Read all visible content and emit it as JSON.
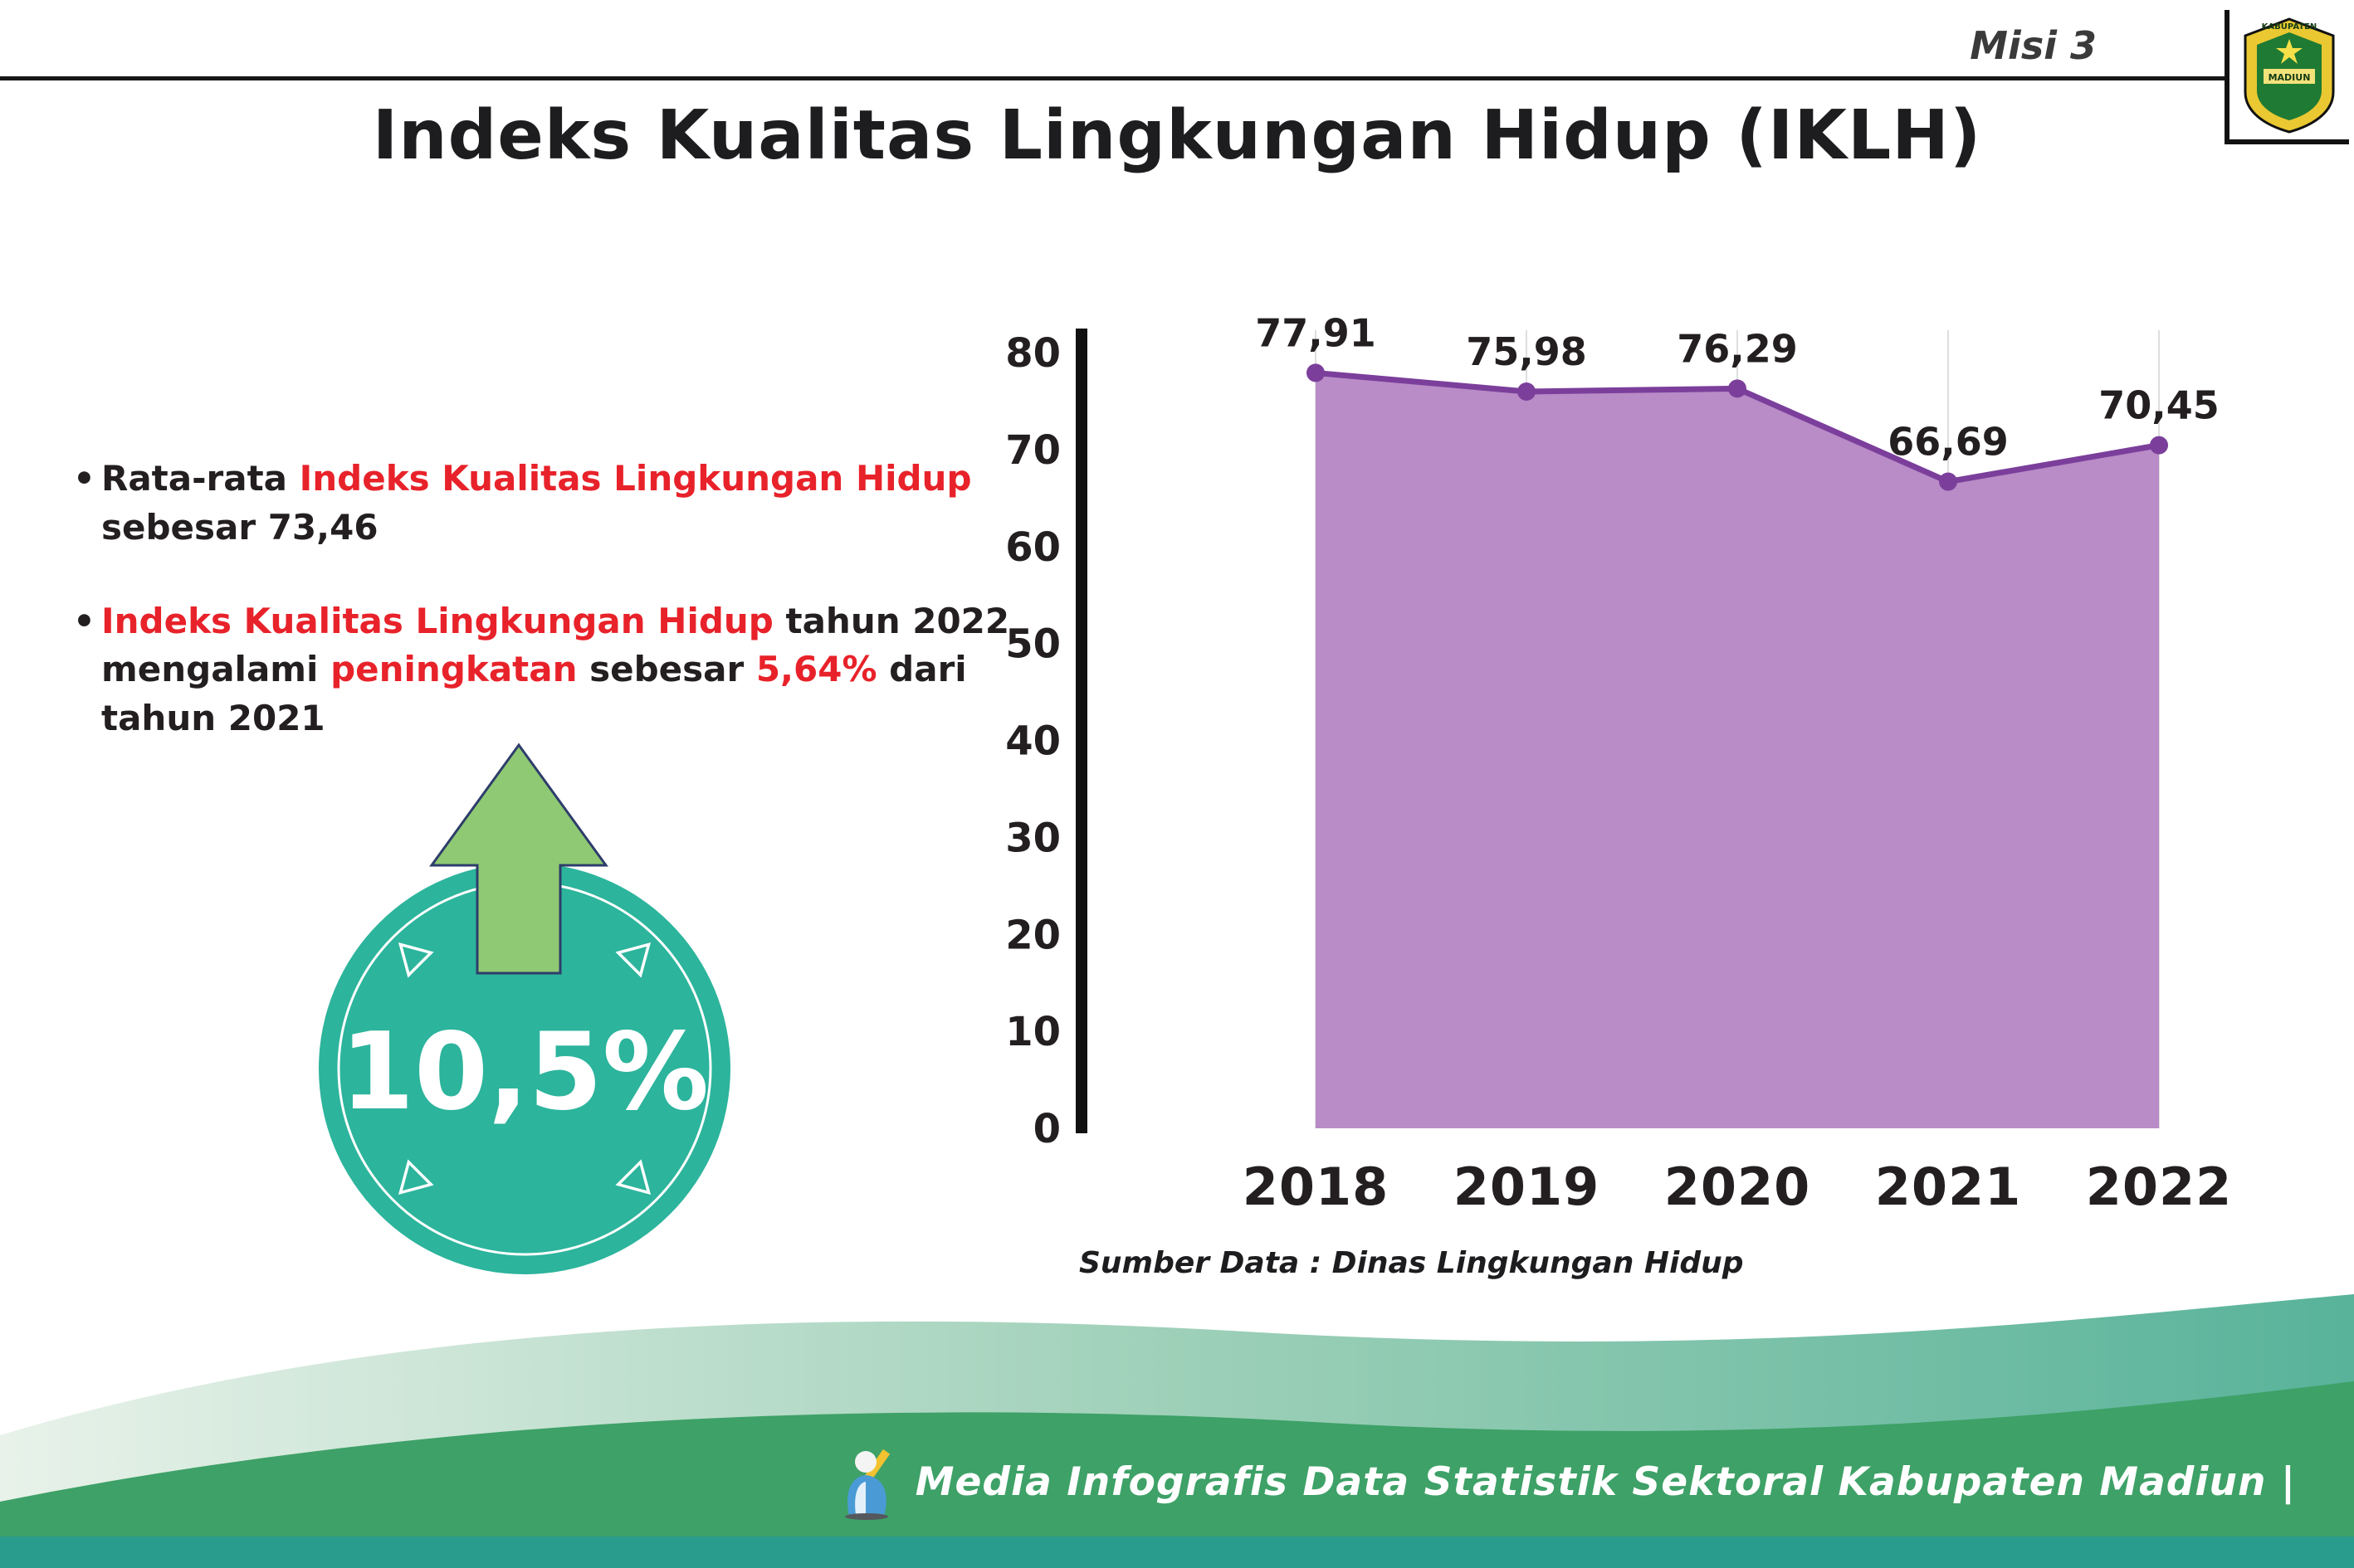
{
  "header": {
    "misi": "Misi 3",
    "logo": {
      "top": "KABUPATEN",
      "bottom": "MADIUN"
    }
  },
  "title": "Indeks Kualitas Lingkungan Hidup (IKLH)",
  "bullets": [
    {
      "segments": [
        {
          "text": "Rata-rata ",
          "red": false
        },
        {
          "text": "Indeks Kualitas Lingkungan Hidup",
          "red": true
        },
        {
          "text": " sebesar 73,46",
          "red": false
        }
      ]
    },
    {
      "segments": [
        {
          "text": "Indeks Kualitas Lingkungan Hidup",
          "red": true
        },
        {
          "text": " tahun 2022 mengalami ",
          "red": false
        },
        {
          "text": "peningkatan",
          "red": true
        },
        {
          "text": " sebesar ",
          "red": false
        },
        {
          "text": "5,64%",
          "red": true
        },
        {
          "text": " dari tahun 2021",
          "red": false
        }
      ]
    }
  ],
  "highlight": {
    "value": "10,5%"
  },
  "chart_data": {
    "type": "area",
    "categories": [
      "2018",
      "2019",
      "2020",
      "2021",
      "2022"
    ],
    "values": [
      77.91,
      75.98,
      76.29,
      66.69,
      70.45
    ],
    "value_labels": [
      "77,91",
      "75,98",
      "76,29",
      "66,69",
      "70,45"
    ],
    "title": "Indeks Kualitas Lingkungan Hidup (IKLH)",
    "xlabel": "",
    "ylabel": "",
    "ylim": [
      0,
      80
    ],
    "yticks": [
      0,
      10,
      20,
      30,
      40,
      50,
      60,
      70,
      80
    ],
    "grid": "vertical-light",
    "legend": "none",
    "area_color": "#b98bc7",
    "line_color": "#7b3f9b",
    "point_color": "#7b3f9b",
    "source": "Sumber Data : Dinas Lingkungan Hidup"
  },
  "footer": {
    "credit": "Media Infografis Data Statistik Sektoral Kabupaten Madiun |"
  },
  "colors": {
    "red": "#e8222a",
    "dark": "#231f20",
    "teal": "#2cb49c",
    "arrow_green": "#8fc973",
    "footer_green": "#3ea167",
    "footer_teal": "#2a9c8e"
  }
}
